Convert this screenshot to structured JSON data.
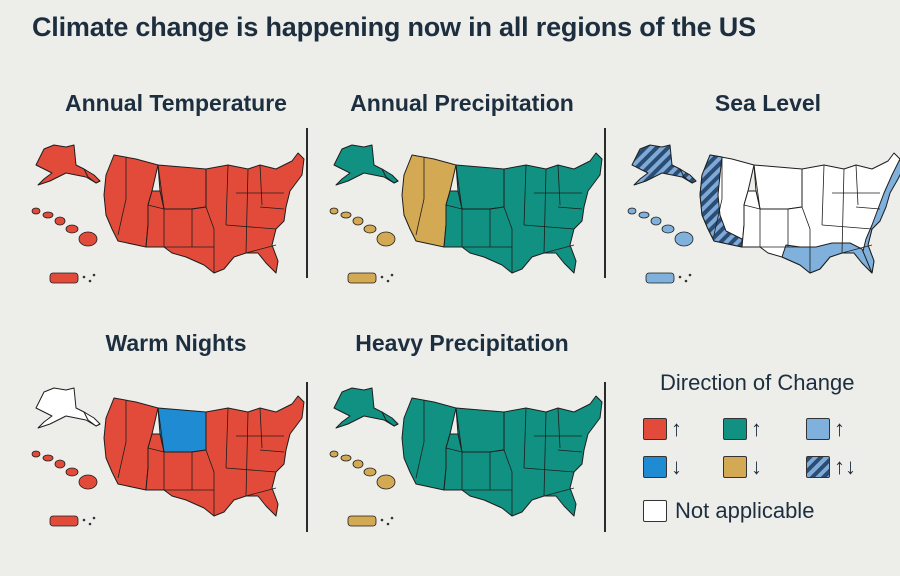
{
  "title": "Climate change is happening now in all regions of the US",
  "colors": {
    "increase_red": "#e24b3a",
    "increase_teal": "#119182",
    "increase_lightblue": "#7fb1dc",
    "decrease_blue": "#1f8bd3",
    "decrease_tan": "#d4a953",
    "not_applicable": "#ffffff"
  },
  "panels": [
    {
      "title": "Annual Temperature",
      "main": "increase_red",
      "west": "increase_red",
      "north": "increase_red",
      "coast": "increase_red",
      "alaska": "increase_red",
      "islands": "increase_red"
    },
    {
      "title": "Annual Precipitation",
      "main": "increase_teal",
      "west": "decrease_tan",
      "north": "increase_teal",
      "coast": "increase_teal",
      "alaska": "increase_teal",
      "islands": "decrease_tan"
    },
    {
      "title": "Sea Level",
      "main": "not_applicable",
      "west": "not_applicable",
      "north": "not_applicable",
      "coast": "increase_lightblue",
      "alaska": "mixed",
      "islands": "increase_lightblue"
    },
    {
      "title": "Warm Nights",
      "main": "increase_red",
      "west": "increase_red",
      "north": "decrease_blue",
      "coast": "increase_red",
      "alaska": "not_applicable",
      "islands": "increase_red"
    },
    {
      "title": "Heavy Precipitation",
      "main": "increase_teal",
      "west": "increase_teal",
      "north": "increase_teal",
      "coast": "increase_teal",
      "alaska": "increase_teal",
      "islands": "decrease_tan"
    }
  ],
  "legend": {
    "title": "Direction of Change",
    "items": [
      {
        "color": "increase_red",
        "arrows": "↑"
      },
      {
        "color": "increase_teal",
        "arrows": "↑"
      },
      {
        "color": "increase_lightblue",
        "arrows": "↑"
      },
      {
        "color": "decrease_blue",
        "arrows": "↓"
      },
      {
        "color": "decrease_tan",
        "arrows": "↓"
      },
      {
        "color": "mixed",
        "arrows": "↑↓"
      }
    ],
    "not_applicable_label": "Not applicable"
  }
}
